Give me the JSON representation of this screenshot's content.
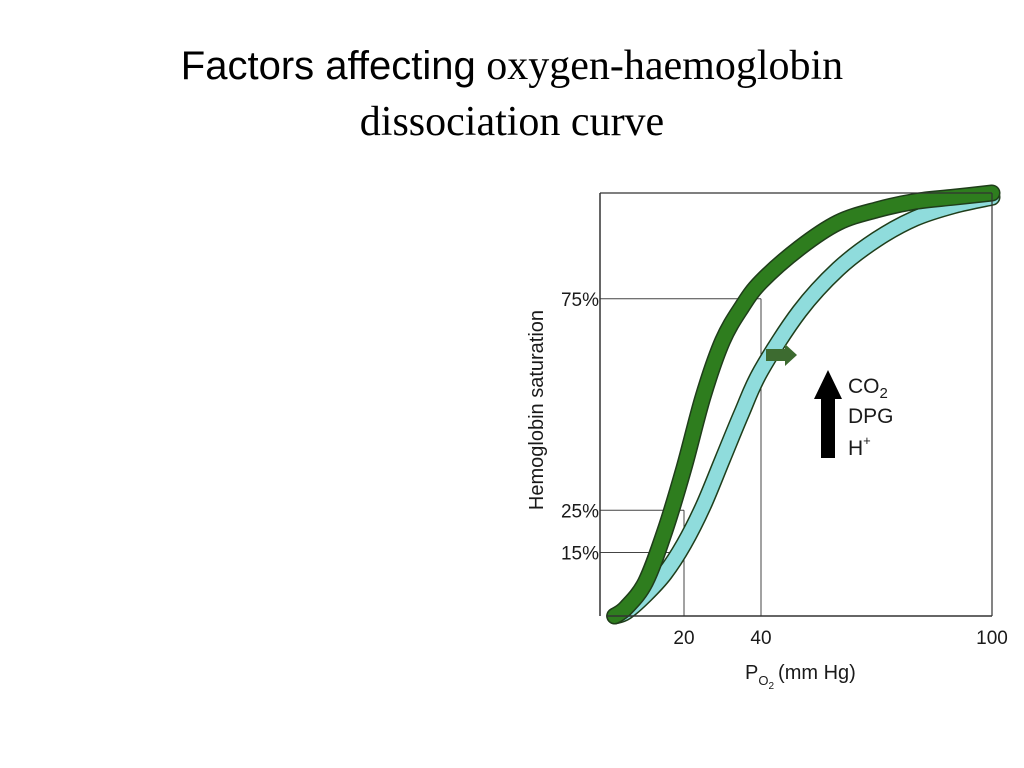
{
  "slide": {
    "title_lead": "Factors affecting",
    "title_rest": "oxygen-haemoglobin",
    "title_line2": "dissociation curve"
  },
  "chart_data": {
    "type": "line",
    "xlabel": "P",
    "xlabel_sub": "O",
    "xlabel_subsub": "2",
    "xlabel_units": "(mm Hg)",
    "ylabel": "Hemoglobin saturation",
    "x_ticks": [
      {
        "value": 20,
        "label": "20"
      },
      {
        "value": 40,
        "label": "40"
      },
      {
        "value": 100,
        "label": "100"
      }
    ],
    "y_ticks": [
      {
        "value": 75,
        "label": "75%"
      },
      {
        "value": 25,
        "label": "25%"
      },
      {
        "value": 15,
        "label": "15%"
      }
    ],
    "xlim": [
      0,
      100
    ],
    "ylim": [
      0,
      100
    ],
    "reference_lines": [
      {
        "axis": "y",
        "value": 75,
        "to_x": 40
      },
      {
        "axis": "y",
        "value": 25,
        "to_x": 20
      },
      {
        "axis": "y",
        "value": 15,
        "to_x": 20
      },
      {
        "axis": "x",
        "value": 20,
        "to_y": 25
      },
      {
        "axis": "x",
        "value": 40,
        "to_y": 75
      }
    ],
    "series": [
      {
        "color": "#2e7d1e",
        "x": [
          2,
          5,
          10,
          15,
          20,
          25,
          30,
          35,
          40,
          50,
          60,
          70,
          80,
          90,
          100
        ],
        "y": [
          0,
          2,
          8,
          20,
          35,
          52,
          65,
          73,
          79,
          87,
          93,
          96,
          98,
          99,
          100
        ]
      },
      {
        "color": "#8fdcdc",
        "x": [
          2,
          5,
          10,
          15,
          20,
          25,
          30,
          35,
          40,
          50,
          60,
          70,
          80,
          90,
          100
        ],
        "y": [
          0,
          1,
          5,
          10,
          17,
          26,
          37,
          48,
          58,
          72,
          82,
          89,
          94,
          97,
          99
        ]
      }
    ],
    "shift_arrow": {
      "color": "#3d6b30"
    },
    "factors": {
      "arrow_color": "#000000",
      "items": [
        {
          "text": "CO",
          "sub": "2",
          "sup": ""
        },
        {
          "text": "DPG",
          "sub": "",
          "sup": ""
        },
        {
          "text": "H",
          "sub": "",
          "sup": "+"
        }
      ]
    }
  }
}
